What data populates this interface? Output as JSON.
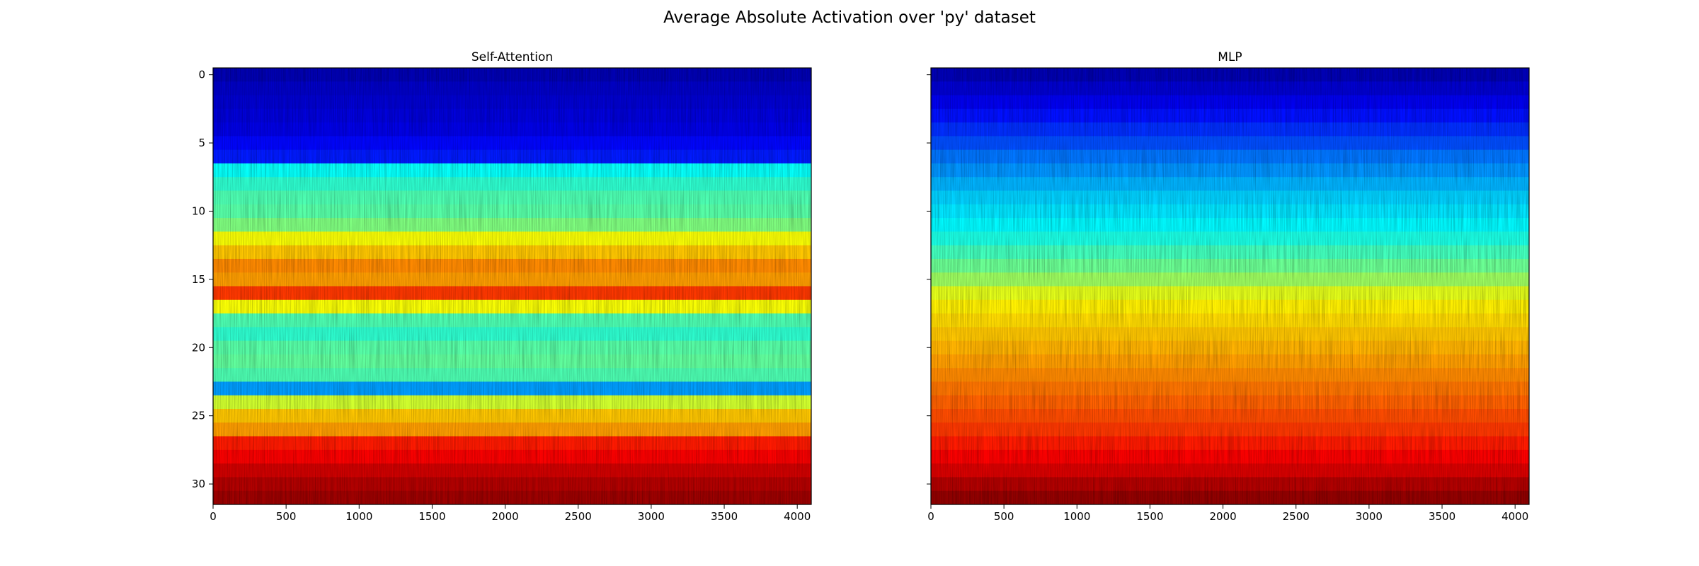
{
  "figure": {
    "title": "Average Absolute Activation over 'py' dataset"
  },
  "chart_data": [
    {
      "type": "heatmap",
      "title": "Self-Attention",
      "colormap": "jet",
      "xlim": [
        0,
        4096
      ],
      "ylim": [
        31.5,
        -0.5
      ],
      "x_ticks": [
        0,
        500,
        1000,
        1500,
        2000,
        2500,
        3000,
        3500,
        4000
      ],
      "y_ticks": [
        0,
        5,
        10,
        15,
        20,
        25,
        30
      ],
      "n_rows": 32,
      "n_cols": 4096,
      "row_mean_intensity": [
        0.05,
        0.07,
        0.08,
        0.09,
        0.1,
        0.13,
        0.15,
        0.38,
        0.42,
        0.45,
        0.46,
        0.5,
        0.62,
        0.68,
        0.74,
        0.72,
        0.82,
        0.62,
        0.45,
        0.42,
        0.46,
        0.47,
        0.45,
        0.28,
        0.58,
        0.68,
        0.72,
        0.85,
        0.88,
        0.92,
        0.95,
        0.97
      ]
    },
    {
      "type": "heatmap",
      "title": "MLP",
      "colormap": "jet",
      "xlim": [
        0,
        4096
      ],
      "ylim": [
        31.5,
        -0.5
      ],
      "x_ticks": [
        0,
        500,
        1000,
        1500,
        2000,
        2500,
        3000,
        3500,
        4000
      ],
      "y_ticks": [
        0,
        5,
        10,
        15,
        20,
        25,
        30
      ],
      "n_rows": 32,
      "n_cols": 4096,
      "row_mean_intensity": [
        0.05,
        0.08,
        0.11,
        0.14,
        0.17,
        0.2,
        0.24,
        0.27,
        0.3,
        0.33,
        0.35,
        0.37,
        0.4,
        0.44,
        0.48,
        0.53,
        0.6,
        0.64,
        0.66,
        0.68,
        0.7,
        0.72,
        0.74,
        0.76,
        0.78,
        0.8,
        0.82,
        0.85,
        0.88,
        0.91,
        0.95,
        0.98
      ]
    }
  ]
}
